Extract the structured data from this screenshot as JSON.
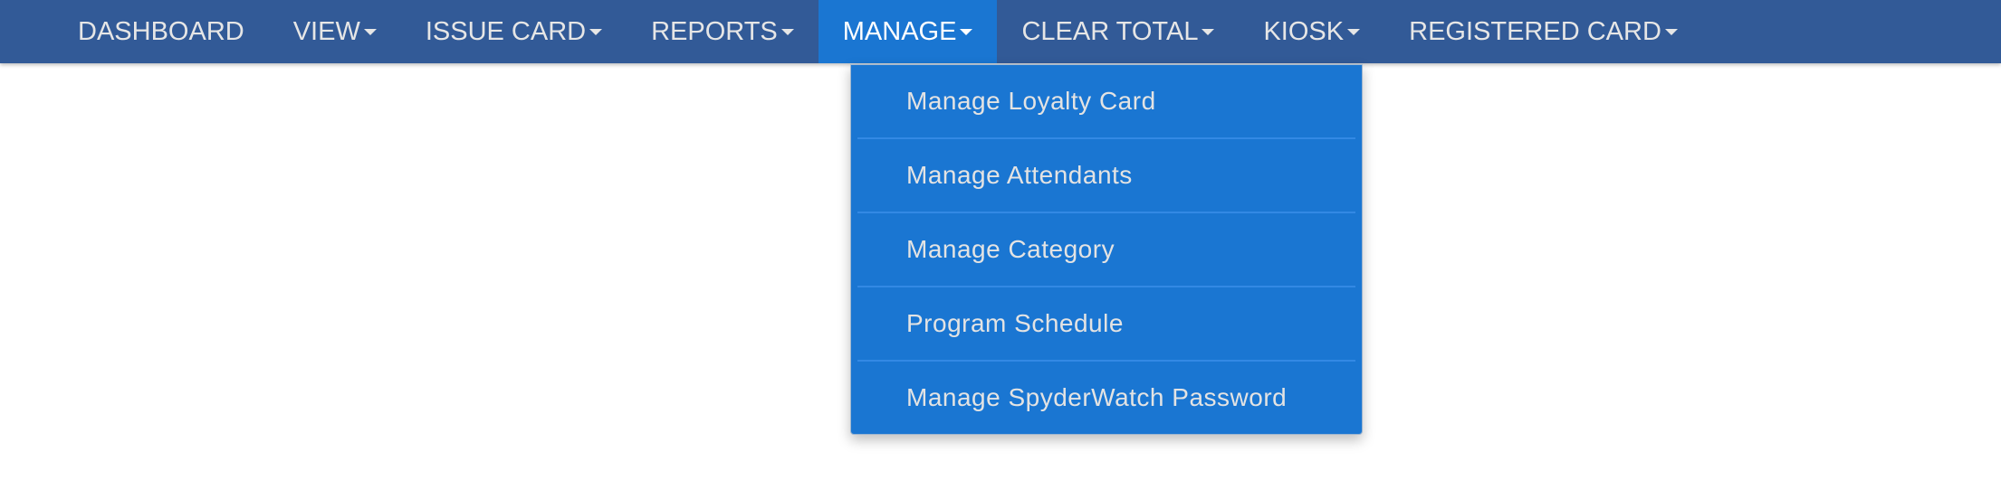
{
  "nav": {
    "items": [
      {
        "label": "DASHBOARD",
        "dropdown": false
      },
      {
        "label": "VIEW",
        "dropdown": true
      },
      {
        "label": "ISSUE CARD",
        "dropdown": true
      },
      {
        "label": "REPORTS",
        "dropdown": true
      },
      {
        "label": "MANAGE",
        "dropdown": true,
        "active": true
      },
      {
        "label": "CLEAR TOTAL",
        "dropdown": true
      },
      {
        "label": "KIOSK",
        "dropdown": true
      },
      {
        "label": "REGISTERED CARD",
        "dropdown": true
      }
    ]
  },
  "manage_menu": {
    "items": [
      {
        "label": "Manage Loyalty Card"
      },
      {
        "label": "Manage Attendants"
      },
      {
        "label": "Manage Category"
      },
      {
        "label": "Program Schedule"
      },
      {
        "label": "Manage SpyderWatch Password"
      }
    ]
  },
  "colors": {
    "navbar": "#325a97",
    "active": "#1a76d2",
    "text": "#e6e6e6"
  }
}
